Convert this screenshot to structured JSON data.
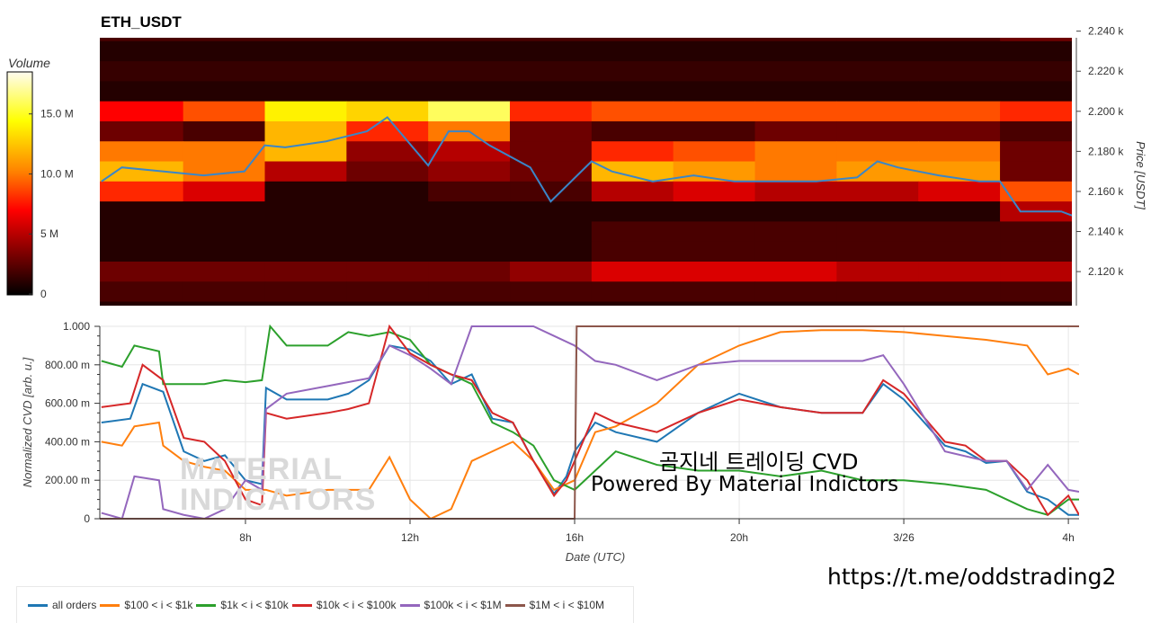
{
  "title": "ETH_USDT",
  "overlay": {
    "line1": "곰지네 트레이딩 CVD",
    "line2": "Powered By Material Indictors",
    "url": "https://t.me/oddstrading2",
    "watermark_line1": "MATERIAL",
    "watermark_line2": "INDICATORS"
  },
  "legend": [
    {
      "label": "all orders",
      "color": "#1f77b4"
    },
    {
      "label": "$100 < i < $1k",
      "color": "#ff7f0e"
    },
    {
      "label": "$1k < i < $10k",
      "color": "#2ca02c"
    },
    {
      "label": "$10k < i < $100k",
      "color": "#d62728"
    },
    {
      "label": "$100k < i < $1M",
      "color": "#9467bd"
    },
    {
      "label": "$1M < i < $10M",
      "color": "#8c564b"
    }
  ],
  "chart_data": [
    {
      "type": "heatmap",
      "title": "ETH_USDT",
      "ylabel": "Price [USDT]",
      "ylim": [
        2.103,
        2.2367
      ],
      "xlim": [
        4.46,
        28.26
      ],
      "yticks": [
        "2.240 k",
        "2.220 k",
        "2.200 k",
        "2.180 k",
        "2.160 k",
        "2.140 k",
        "2.120 k"
      ],
      "ytick_values": [
        2.24,
        2.22,
        2.2,
        2.18,
        2.16,
        2.14,
        2.12
      ],
      "colorbar": {
        "label": "Volume",
        "range": [
          0,
          18.5
        ],
        "ticks": [
          "0",
          "5 M",
          "10.0 M",
          "15.0 M"
        ],
        "tick_values": [
          0,
          5,
          10,
          15
        ]
      },
      "x_bins_hours": [
        4.46,
        6.5,
        8.5,
        10.5,
        12.5,
        14.5,
        16.5,
        18.5,
        20.5,
        22.5,
        24.5,
        26.5,
        28.26
      ],
      "price_levels": [
        2.24,
        2.23,
        2.22,
        2.21,
        2.2,
        2.19,
        2.18,
        2.17,
        2.16,
        2.15,
        2.14,
        2.13,
        2.12,
        2.11,
        2.1
      ],
      "volume_millions": [
        [
          2,
          2,
          2,
          2,
          2,
          2,
          2,
          2,
          2,
          2,
          2,
          3
        ],
        [
          1,
          1,
          1,
          1,
          1,
          1,
          1,
          1,
          1,
          1,
          1,
          1
        ],
        [
          1.5,
          1.5,
          1.5,
          1.5,
          1.5,
          1.5,
          1.5,
          1.5,
          1.5,
          1.5,
          1.5,
          1.5
        ],
        [
          1,
          1,
          1,
          1,
          1,
          1,
          1,
          1,
          1,
          1,
          1,
          1
        ],
        [
          7,
          9,
          14,
          13,
          16,
          8,
          9,
          9,
          9,
          9,
          9,
          8
        ],
        [
          3,
          2,
          12,
          8,
          10,
          3,
          2,
          2,
          3,
          3,
          3,
          2
        ],
        [
          10,
          10,
          12,
          4,
          5,
          3,
          8,
          9,
          10,
          10,
          10,
          3
        ],
        [
          12,
          10,
          5,
          3,
          4,
          3,
          12,
          11,
          10,
          11,
          11,
          3
        ],
        [
          8,
          6,
          1,
          1,
          2,
          2,
          5,
          6,
          5,
          5,
          6,
          9
        ],
        [
          1,
          1,
          1,
          1,
          1,
          1,
          1,
          1,
          1,
          1,
          1,
          5
        ],
        [
          1,
          1,
          1,
          1,
          1,
          1,
          2,
          2,
          2,
          2,
          2,
          2
        ],
        [
          1,
          1,
          1,
          1,
          1,
          1,
          2,
          2,
          2,
          2,
          2,
          2
        ],
        [
          3,
          3,
          3,
          3,
          3,
          4,
          6,
          6,
          6,
          5,
          5,
          5
        ],
        [
          2,
          2,
          2,
          2,
          2,
          2,
          2,
          2,
          2,
          2,
          2,
          2
        ],
        [
          1,
          1,
          1,
          1,
          1,
          1,
          1,
          1,
          1,
          1,
          1,
          1
        ]
      ],
      "price_line": {
        "color": "#3a86c8",
        "x": [
          4.5,
          5,
          6,
          7,
          8,
          8.5,
          9,
          10,
          11,
          11.5,
          12,
          12.5,
          13,
          13.5,
          14,
          15,
          15.5,
          16,
          16.5,
          17,
          18,
          19,
          20,
          21,
          22,
          23,
          23.5,
          24,
          25,
          26,
          26.5,
          27,
          28,
          28.26
        ],
        "y": [
          2.165,
          2.172,
          2.17,
          2.168,
          2.17,
          2.183,
          2.182,
          2.185,
          2.19,
          2.197,
          2.185,
          2.173,
          2.19,
          2.19,
          2.183,
          2.172,
          2.155,
          2.165,
          2.175,
          2.17,
          2.165,
          2.168,
          2.165,
          2.165,
          2.165,
          2.167,
          2.175,
          2.172,
          2.168,
          2.165,
          2.165,
          2.15,
          2.15,
          2.148
        ]
      }
    },
    {
      "type": "line",
      "xlabel": "Date (UTC)",
      "ylabel": "Normalized CVD [arb. u.]",
      "ylim": [
        0,
        1
      ],
      "xlim": [
        4.46,
        28.26
      ],
      "grid": true,
      "legend_position": "bottom",
      "yticks": [
        "0",
        "200.00 m",
        "400.00 m",
        "600.00 m",
        "800.00 m",
        "1.000"
      ],
      "ytick_values": [
        0,
        0.2,
        0.4,
        0.6,
        0.8,
        1.0
      ],
      "xticks": [
        "8h",
        "12h",
        "16h",
        "20h",
        "3/26",
        "4h"
      ],
      "xtick_values": [
        8,
        12,
        16,
        20,
        24,
        28
      ],
      "series": [
        {
          "name": "all orders",
          "x": [
            4.5,
            5.2,
            5.5,
            6,
            6.5,
            7,
            7.5,
            8,
            8.4,
            8.5,
            9,
            10,
            10.5,
            11,
            11.5,
            12,
            12.5,
            13,
            13.5,
            14,
            14.5,
            15,
            15.5,
            15.8,
            16,
            16.5,
            17,
            18,
            19,
            20,
            21,
            22,
            23,
            23.5,
            24,
            25,
            25.5,
            26,
            26.5,
            27,
            27.5,
            28,
            28.26
          ],
          "y": [
            0.5,
            0.52,
            0.7,
            0.66,
            0.35,
            0.3,
            0.33,
            0.2,
            0.18,
            0.68,
            0.62,
            0.62,
            0.65,
            0.72,
            0.9,
            0.88,
            0.82,
            0.7,
            0.75,
            0.52,
            0.5,
            0.3,
            0.13,
            0.22,
            0.35,
            0.5,
            0.45,
            0.4,
            0.55,
            0.65,
            0.58,
            0.55,
            0.55,
            0.7,
            0.62,
            0.38,
            0.35,
            0.29,
            0.3,
            0.14,
            0.1,
            0.02,
            0.02
          ]
        },
        {
          "name": "$100 < i < $1k",
          "x": [
            4.5,
            5,
            5.3,
            5.9,
            6,
            6.5,
            7,
            7.5,
            8,
            8.5,
            9,
            10,
            11,
            11.5,
            12,
            12.5,
            13,
            13.5,
            14,
            14.5,
            15,
            15.5,
            16,
            16.5,
            17,
            18,
            19,
            20,
            21,
            22,
            23,
            24,
            25,
            26,
            27,
            27.5,
            28,
            28.26
          ],
          "y": [
            0.4,
            0.38,
            0.48,
            0.5,
            0.38,
            0.3,
            0.27,
            0.25,
            0.15,
            0.15,
            0.12,
            0.15,
            0.15,
            0.32,
            0.1,
            0.0,
            0.05,
            0.3,
            0.35,
            0.4,
            0.3,
            0.15,
            0.2,
            0.45,
            0.48,
            0.6,
            0.8,
            0.9,
            0.97,
            0.98,
            0.98,
            0.97,
            0.95,
            0.93,
            0.9,
            0.75,
            0.78,
            0.75
          ]
        },
        {
          "name": "$1k < i < $10k",
          "x": [
            4.5,
            5,
            5.3,
            5.9,
            6,
            7,
            7.5,
            8,
            8.4,
            8.6,
            9,
            10,
            10.5,
            11,
            11.5,
            12,
            12.5,
            13,
            13.5,
            14,
            14.5,
            15,
            15.5,
            16,
            16.5,
            17,
            18,
            19,
            20,
            21,
            22,
            23,
            24,
            25,
            26,
            27,
            27.5,
            28,
            28.26
          ],
          "y": [
            0.82,
            0.79,
            0.9,
            0.87,
            0.7,
            0.7,
            0.72,
            0.71,
            0.72,
            1.0,
            0.9,
            0.9,
            0.97,
            0.95,
            0.97,
            0.93,
            0.8,
            0.75,
            0.7,
            0.5,
            0.45,
            0.38,
            0.2,
            0.15,
            0.25,
            0.35,
            0.28,
            0.25,
            0.25,
            0.22,
            0.25,
            0.2,
            0.2,
            0.18,
            0.15,
            0.05,
            0.02,
            0.1,
            0.1
          ]
        },
        {
          "name": "$10k < i < $100k",
          "x": [
            4.5,
            5.2,
            5.5,
            6,
            6.5,
            7,
            7.5,
            8,
            8.4,
            8.5,
            9,
            10,
            10.5,
            11,
            11.5,
            12,
            12.5,
            13,
            13.5,
            14,
            14.5,
            15,
            15.5,
            15.8,
            16,
            16.5,
            17,
            18,
            19,
            20,
            21,
            22,
            23,
            23.5,
            24,
            25,
            25.5,
            26,
            26.5,
            27,
            27.5,
            28,
            28.26
          ],
          "y": [
            0.58,
            0.6,
            0.8,
            0.72,
            0.42,
            0.4,
            0.3,
            0.1,
            0.07,
            0.55,
            0.52,
            0.55,
            0.57,
            0.6,
            1.0,
            0.86,
            0.8,
            0.75,
            0.72,
            0.55,
            0.5,
            0.3,
            0.12,
            0.2,
            0.3,
            0.55,
            0.5,
            0.45,
            0.55,
            0.62,
            0.58,
            0.55,
            0.55,
            0.72,
            0.65,
            0.4,
            0.38,
            0.3,
            0.3,
            0.2,
            0.02,
            0.12,
            0.02
          ]
        },
        {
          "name": "$100k < i < $1M",
          "x": [
            4.5,
            5,
            5.3,
            5.9,
            6,
            6.5,
            7,
            7.5,
            8,
            8.4,
            8.5,
            9,
            10,
            11,
            11.5,
            12,
            12.5,
            13,
            13.5,
            14,
            15,
            15.5,
            16,
            16.5,
            17,
            18,
            19,
            20,
            21,
            22,
            23,
            23.5,
            24,
            25,
            26,
            26.5,
            27,
            27.5,
            28,
            28.26
          ],
          "y": [
            0.03,
            0.0,
            0.22,
            0.2,
            0.05,
            0.02,
            0.0,
            0.05,
            0.2,
            0.15,
            0.57,
            0.65,
            0.69,
            0.73,
            0.9,
            0.85,
            0.78,
            0.7,
            1.0,
            1.0,
            1.0,
            0.95,
            0.9,
            0.82,
            0.8,
            0.72,
            0.8,
            0.82,
            0.82,
            0.82,
            0.82,
            0.85,
            0.7,
            0.35,
            0.3,
            0.3,
            0.15,
            0.28,
            0.15,
            0.14
          ]
        },
        {
          "name": "$1M < i < $10M",
          "x": [
            4.46,
            16,
            16.05,
            28.26
          ],
          "y": [
            0,
            0,
            1.0,
            1.0
          ]
        }
      ]
    }
  ]
}
